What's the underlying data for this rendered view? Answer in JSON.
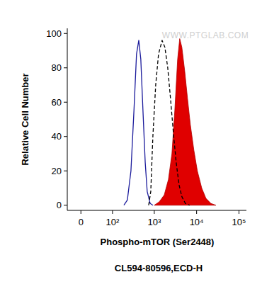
{
  "chart_data": {
    "type": "line",
    "xlabel": "Phospho-mTOR (Ser2448)",
    "ylabel": "Relative Cell Number",
    "annotations": [
      "WWW.PTGLAB.COM",
      "CL594-80596,ECD-H"
    ],
    "xlim": [
      -30,
      150000
    ],
    "xticks": [
      0,
      {
        "value": 100,
        "label": "10²"
      },
      {
        "value": 1000,
        "label": "10³"
      },
      {
        "value": 10000,
        "label": "10⁴"
      },
      {
        "value": 100000,
        "label": "10⁵"
      }
    ],
    "ylim": [
      -3,
      103
    ],
    "yticks": [
      0,
      20,
      40,
      60,
      80,
      100
    ],
    "grid": false,
    "series": [
      {
        "type": "line",
        "color": "#1c1c9c",
        "line_style": "solid",
        "x": [
          190,
          230,
          280,
          330,
          380,
          430,
          480,
          540,
          610,
          680,
          800,
          930
        ],
        "values": [
          0,
          3,
          20,
          55,
          88,
          96,
          85,
          55,
          25,
          8,
          1,
          0
        ]
      },
      {
        "type": "line",
        "color": "#000000",
        "line_style": "dashed",
        "x": [
          736,
          826,
          926,
          1080,
          1260,
          1530,
          1780,
          2080,
          2420,
          2830,
          3290,
          3840,
          4480,
          5440,
          6840
        ],
        "values": [
          0,
          8,
          40,
          70,
          88,
          96,
          92,
          80,
          62,
          42,
          25,
          12,
          5,
          1,
          0
        ]
      },
      {
        "type": "area",
        "color": "#e00000",
        "line_style": "solid",
        "x": [
          1000,
          1310,
          1720,
          2160,
          2610,
          3050,
          3560,
          3990,
          4480,
          5240,
          6100,
          7100,
          8620,
          10400,
          13200,
          16600,
          21800,
          28500
        ],
        "values": [
          0,
          2,
          6,
          15,
          30,
          55,
          85,
          97,
          92,
          78,
          62,
          47,
          32,
          20,
          10,
          4,
          1,
          0
        ]
      }
    ]
  }
}
